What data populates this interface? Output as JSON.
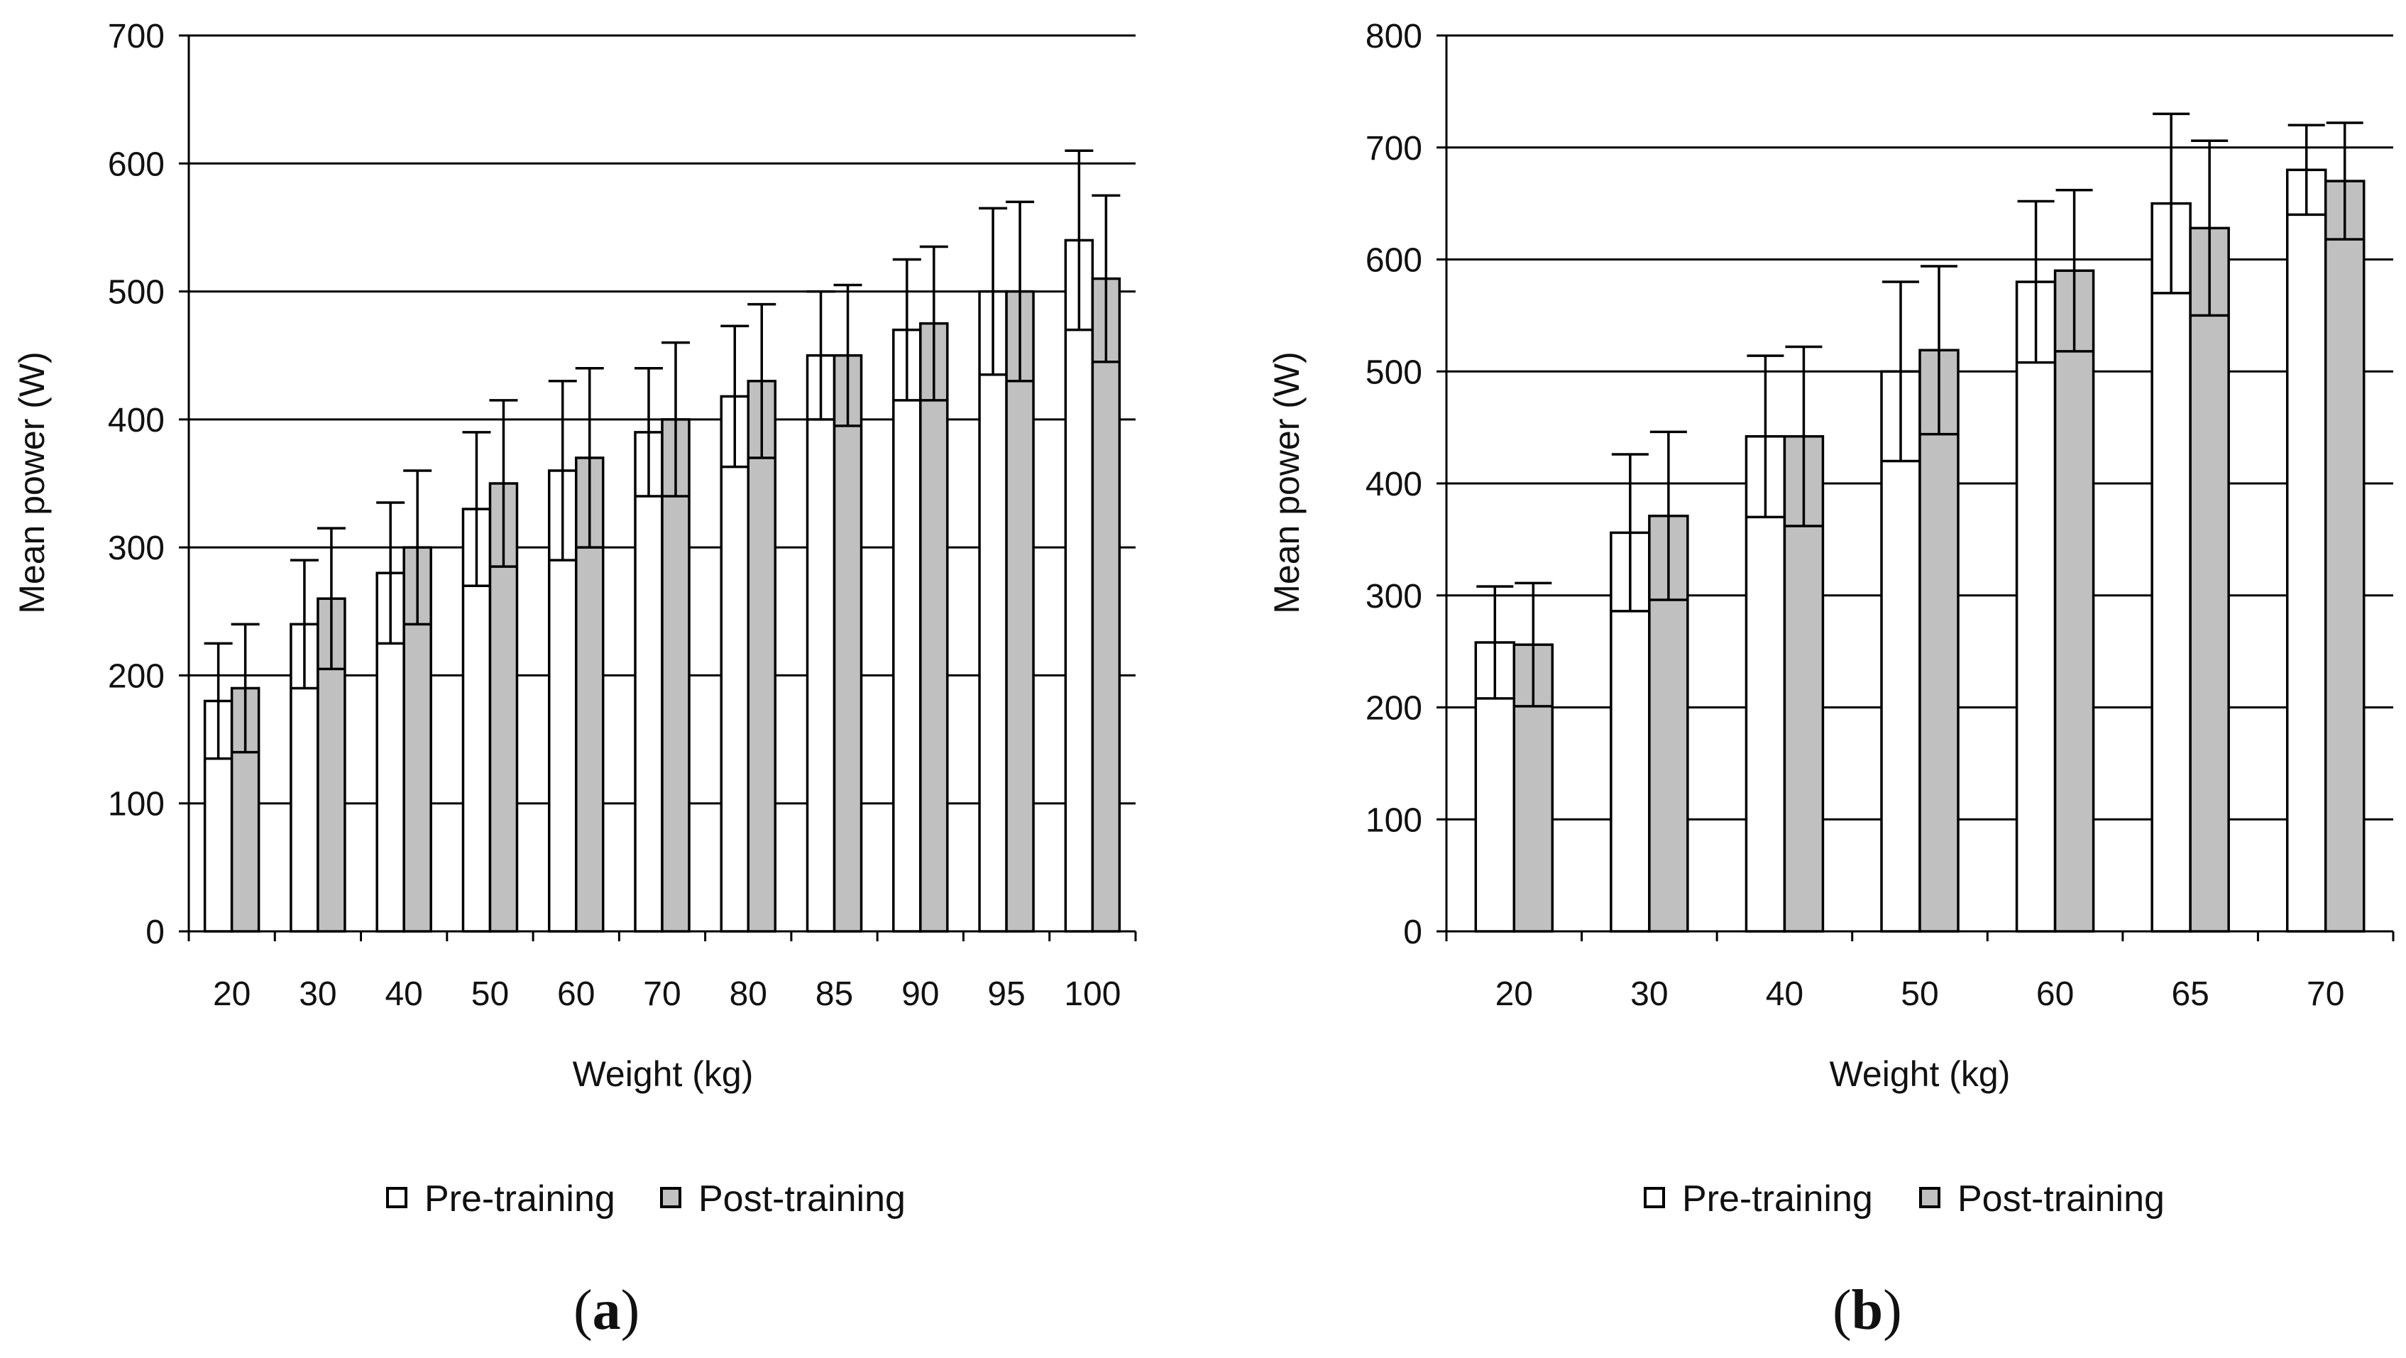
{
  "legend": {
    "pre_label": "Pre-training",
    "post_label": "Post-training"
  },
  "colors": {
    "pre_fill": "#ffffff",
    "post_fill": "#c0c0c0",
    "stroke": "#000000",
    "grid": "#000000"
  },
  "chart_data": [
    {
      "type": "bar",
      "panel_label": "a",
      "title": "",
      "xlabel": "Weight (kg)",
      "ylabel": "Mean power (W)",
      "ylim": [
        0,
        700
      ],
      "yticks": [
        0,
        100,
        200,
        300,
        400,
        500,
        600,
        700
      ],
      "grid": true,
      "legend_position": "bottom-center",
      "categories": [
        "20",
        "30",
        "40",
        "50",
        "60",
        "70",
        "80",
        "85",
        "90",
        "95",
        "100"
      ],
      "series": [
        {
          "name": "Pre-training",
          "values": [
            180,
            240,
            280,
            330,
            360,
            390,
            418,
            450,
            470,
            500,
            540
          ],
          "errors": [
            45,
            50,
            55,
            60,
            70,
            50,
            55,
            50,
            55,
            65,
            70
          ]
        },
        {
          "name": "Post-training",
          "values": [
            190,
            260,
            300,
            350,
            370,
            400,
            430,
            450,
            475,
            500,
            510
          ],
          "errors": [
            50,
            55,
            60,
            65,
            70,
            60,
            60,
            55,
            60,
            70,
            65
          ]
        }
      ]
    },
    {
      "type": "bar",
      "panel_label": "b",
      "title": "",
      "xlabel": "Weight (kg)",
      "ylabel": "Mean power (W)",
      "ylim": [
        0,
        800
      ],
      "yticks": [
        0,
        100,
        200,
        300,
        400,
        500,
        600,
        700,
        800
      ],
      "grid": true,
      "legend_position": "bottom-center",
      "categories": [
        "20",
        "30",
        "40",
        "50",
        "60",
        "65",
        "70"
      ],
      "series": [
        {
          "name": "Pre-training",
          "values": [
            258,
            356,
            442,
            500,
            580,
            650,
            680
          ],
          "errors": [
            50,
            70,
            72,
            80,
            72,
            80,
            40
          ]
        },
        {
          "name": "Post-training",
          "values": [
            256,
            371,
            442,
            519,
            590,
            628,
            670
          ],
          "errors": [
            55,
            75,
            80,
            75,
            72,
            78,
            52
          ]
        }
      ]
    }
  ]
}
